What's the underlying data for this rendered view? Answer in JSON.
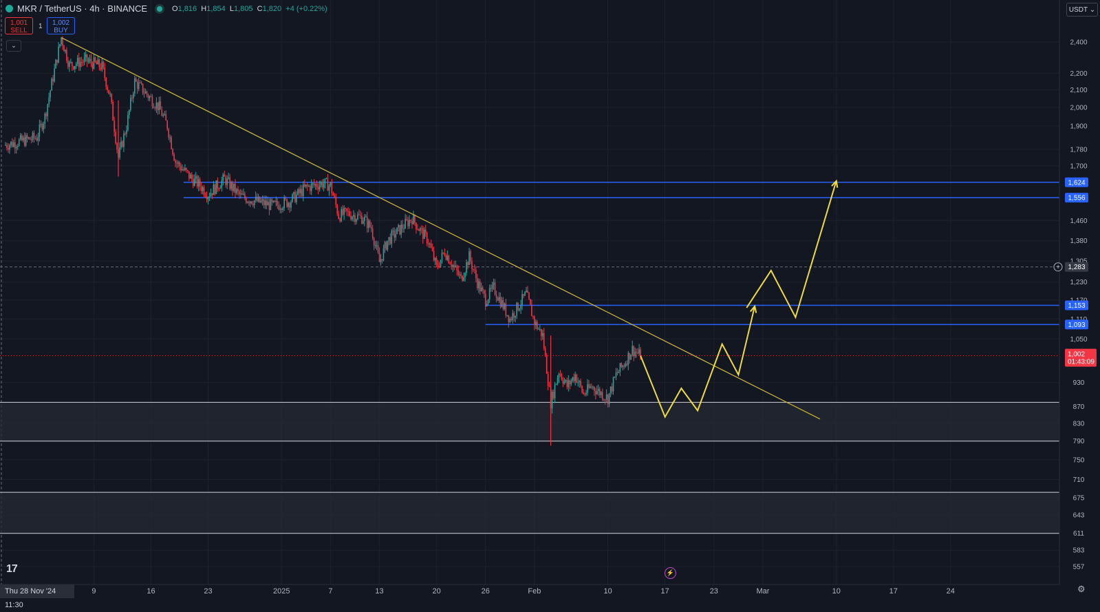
{
  "header": {
    "symbol": "MKR / TetherUS · 4h · BINANCE",
    "open_label": "O",
    "open": "1,816",
    "high_label": "H",
    "high": "1,854",
    "low_label": "L",
    "low": "1,805",
    "close_label": "C",
    "close": "1,820",
    "change": "+4 (+0.22%)"
  },
  "trade": {
    "sell_price": "1,001",
    "sell_label": "SELL",
    "buy_price": "1,002",
    "buy_label": "BUY",
    "quantity": "1"
  },
  "currency": "USDT",
  "logo_text": "17",
  "crosshair_date": "Thu 28 Nov '24   11:30",
  "colors": {
    "background": "#131722",
    "up": "#26a69a",
    "down": "#f23645",
    "trendline": "#c9b33a",
    "projection": "#f0dc3c",
    "level": "#2962ff",
    "zone_border": "#d1d4dc",
    "zone_fill": "#262a33"
  },
  "chart_data": {
    "type": "candlestick",
    "scale": "log",
    "ylim": [
      545,
      2600
    ],
    "xlim": [
      "2024-11-28",
      "2025-04-01"
    ],
    "price_ticks": [
      {
        "value": 2400,
        "label": "2,400"
      },
      {
        "value": 2200,
        "label": "2,200"
      },
      {
        "value": 2100,
        "label": "2,100"
      },
      {
        "value": 2000,
        "label": "2,000"
      },
      {
        "value": 1900,
        "label": "1,900"
      },
      {
        "value": 1780,
        "label": "1,780"
      },
      {
        "value": 1700,
        "label": "1,700"
      },
      {
        "value": 1460,
        "label": "1,460"
      },
      {
        "value": 1380,
        "label": "1,380"
      },
      {
        "value": 1305,
        "label": "1,305"
      },
      {
        "value": 1230,
        "label": "1,230"
      },
      {
        "value": 1170,
        "label": "1,170"
      },
      {
        "value": 1110,
        "label": "1,110"
      },
      {
        "value": 1050,
        "label": "1,050"
      },
      {
        "value": 930,
        "label": "930"
      },
      {
        "value": 870,
        "label": "870"
      },
      {
        "value": 830,
        "label": "830"
      },
      {
        "value": 790,
        "label": "790"
      },
      {
        "value": 750,
        "label": "750"
      },
      {
        "value": 710,
        "label": "710"
      },
      {
        "value": 675,
        "label": "675"
      },
      {
        "value": 643,
        "label": "643"
      },
      {
        "value": 611,
        "label": "611"
      },
      {
        "value": 583,
        "label": "583"
      },
      {
        "value": 557,
        "label": "557"
      }
    ],
    "time_ticks": [
      {
        "date": "2024-12-09",
        "label": "9"
      },
      {
        "date": "2024-12-16",
        "label": "16"
      },
      {
        "date": "2024-12-23",
        "label": "23"
      },
      {
        "date": "2025-01-01",
        "label": "2025"
      },
      {
        "date": "2025-01-07",
        "label": "7"
      },
      {
        "date": "2025-01-13",
        "label": "13"
      },
      {
        "date": "2025-01-20",
        "label": "20"
      },
      {
        "date": "2025-01-26",
        "label": "26"
      },
      {
        "date": "2025-02-01",
        "label": "Feb"
      },
      {
        "date": "2025-02-10",
        "label": "10"
      },
      {
        "date": "2025-02-17",
        "label": "17"
      },
      {
        "date": "2025-02-23",
        "label": "23"
      },
      {
        "date": "2025-03-01",
        "label": "Mar"
      },
      {
        "date": "2025-03-10",
        "label": "10"
      },
      {
        "date": "2025-03-17",
        "label": "17"
      },
      {
        "date": "2025-03-24",
        "label": "24"
      }
    ],
    "price_path": [
      [
        "2024-11-28",
        1800
      ],
      [
        "2024-12-02",
        1840
      ],
      [
        "2024-12-03",
        1950
      ],
      [
        "2024-12-05",
        2430
      ],
      [
        "2024-12-06",
        2250
      ],
      [
        "2024-12-08",
        2280
      ],
      [
        "2024-12-10",
        2240
      ],
      [
        "2024-12-11",
        2060
      ],
      [
        "2024-12-12",
        1740
      ],
      [
        "2024-12-13",
        1900
      ],
      [
        "2024-12-14",
        2150
      ],
      [
        "2024-12-15",
        2100
      ],
      [
        "2024-12-17",
        2000
      ],
      [
        "2024-12-18",
        1900
      ],
      [
        "2024-12-19",
        1720
      ],
      [
        "2024-12-20",
        1680
      ],
      [
        "2024-12-21",
        1640
      ],
      [
        "2024-12-22",
        1610
      ],
      [
        "2024-12-23",
        1570
      ],
      [
        "2024-12-25",
        1640
      ],
      [
        "2024-12-27",
        1560
      ],
      [
        "2024-12-29",
        1540
      ],
      [
        "2024-12-31",
        1520
      ],
      [
        "2025-01-02",
        1540
      ],
      [
        "2025-01-04",
        1600
      ],
      [
        "2025-01-06",
        1620
      ],
      [
        "2025-01-07",
        1610
      ],
      [
        "2025-01-08",
        1480
      ],
      [
        "2025-01-09",
        1490
      ],
      [
        "2025-01-11",
        1470
      ],
      [
        "2025-01-12",
        1430
      ],
      [
        "2025-01-13",
        1300
      ],
      [
        "2025-01-14",
        1380
      ],
      [
        "2025-01-16",
        1440
      ],
      [
        "2025-01-17",
        1470
      ],
      [
        "2025-01-18",
        1420
      ],
      [
        "2025-01-19",
        1380
      ],
      [
        "2025-01-20",
        1280
      ],
      [
        "2025-01-21",
        1340
      ],
      [
        "2025-01-23",
        1240
      ],
      [
        "2025-01-24",
        1320
      ],
      [
        "2025-01-25",
        1230
      ],
      [
        "2025-01-26",
        1170
      ],
      [
        "2025-01-27",
        1210
      ],
      [
        "2025-01-29",
        1110
      ],
      [
        "2025-01-31",
        1190
      ],
      [
        "2025-02-01",
        1100
      ],
      [
        "2025-02-02",
        1060
      ],
      [
        "2025-02-03",
        880
      ],
      [
        "2025-02-04",
        960
      ],
      [
        "2025-02-05",
        920
      ],
      [
        "2025-02-06",
        950
      ],
      [
        "2025-02-07",
        900
      ],
      [
        "2025-02-08",
        920
      ],
      [
        "2025-02-09",
        905
      ],
      [
        "2025-02-10",
        890
      ],
      [
        "2025-02-11",
        950
      ],
      [
        "2025-02-12",
        980
      ],
      [
        "2025-02-13",
        1020
      ],
      [
        "2025-02-14",
        1002
      ]
    ],
    "wicks": [
      [
        "2025-02-03",
        1060,
        780
      ],
      [
        "2024-12-12",
        2040,
        1650
      ]
    ],
    "trendline": [
      [
        "2024-12-05",
        2430
      ],
      [
        "2025-03-08",
        840
      ]
    ],
    "levels": [
      {
        "value": 1624,
        "label": "1,624",
        "from": "2024-12-20"
      },
      {
        "value": 1556,
        "label": "1,556",
        "from": "2024-12-20"
      },
      {
        "value": 1153,
        "label": "1,153",
        "from": "2025-01-26"
      },
      {
        "value": 1093,
        "label": "1,093",
        "from": "2025-01-26"
      }
    ],
    "crosshair": {
      "value": 1283,
      "label": "1,283"
    },
    "current_price": {
      "value": 1002,
      "label": "1,002",
      "countdown": "01:43:09"
    },
    "zones": [
      [
        790,
        880
      ],
      [
        611,
        685
      ]
    ],
    "projection_path": [
      [
        "2025-02-14",
        1002
      ],
      [
        "2025-02-17",
        845
      ],
      [
        "2025-02-19",
        915
      ],
      [
        "2025-02-21",
        860
      ],
      [
        "2025-02-24",
        1035
      ],
      [
        "2025-02-26",
        950
      ],
      [
        "2025-02-28",
        1150
      ]
    ],
    "projection_path_2": [
      [
        "2025-02-27",
        1145
      ],
      [
        "2025-03-02",
        1270
      ],
      [
        "2025-03-05",
        1115
      ],
      [
        "2025-03-10",
        1630
      ]
    ]
  }
}
